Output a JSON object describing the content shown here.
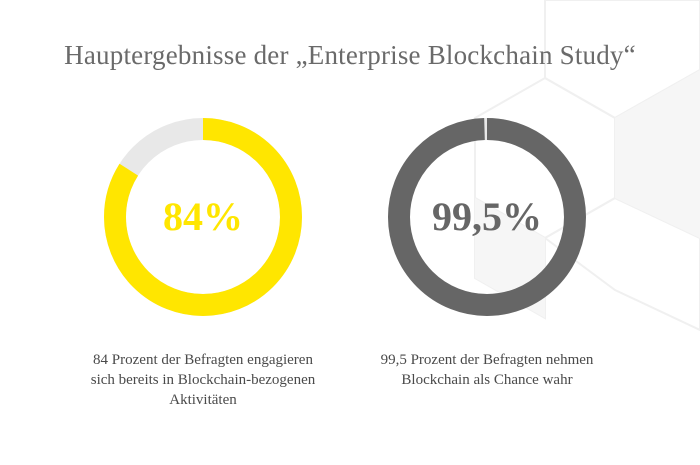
{
  "title": "Hauptergebnisse der „Enterprise Blockchain Study“",
  "colors": {
    "yellow": "#ffe600",
    "gray": "#666666",
    "track": "#e8e8e8",
    "pattern": "#f3f3f3"
  },
  "chart_data": [
    {
      "type": "pie",
      "label": "84%",
      "value": 84,
      "max": 100,
      "color": "#ffe600",
      "caption": [
        "84 Prozent der Befragten engagieren",
        "sich bereits in Blockchain-bezogenen",
        "Aktivitäten"
      ]
    },
    {
      "type": "pie",
      "label": "99,5%",
      "value": 99.5,
      "max": 100,
      "color": "#666666",
      "caption": [
        "99,5 Prozent der Befragten nehmen",
        "Blockchain als Chance wahr"
      ]
    }
  ]
}
